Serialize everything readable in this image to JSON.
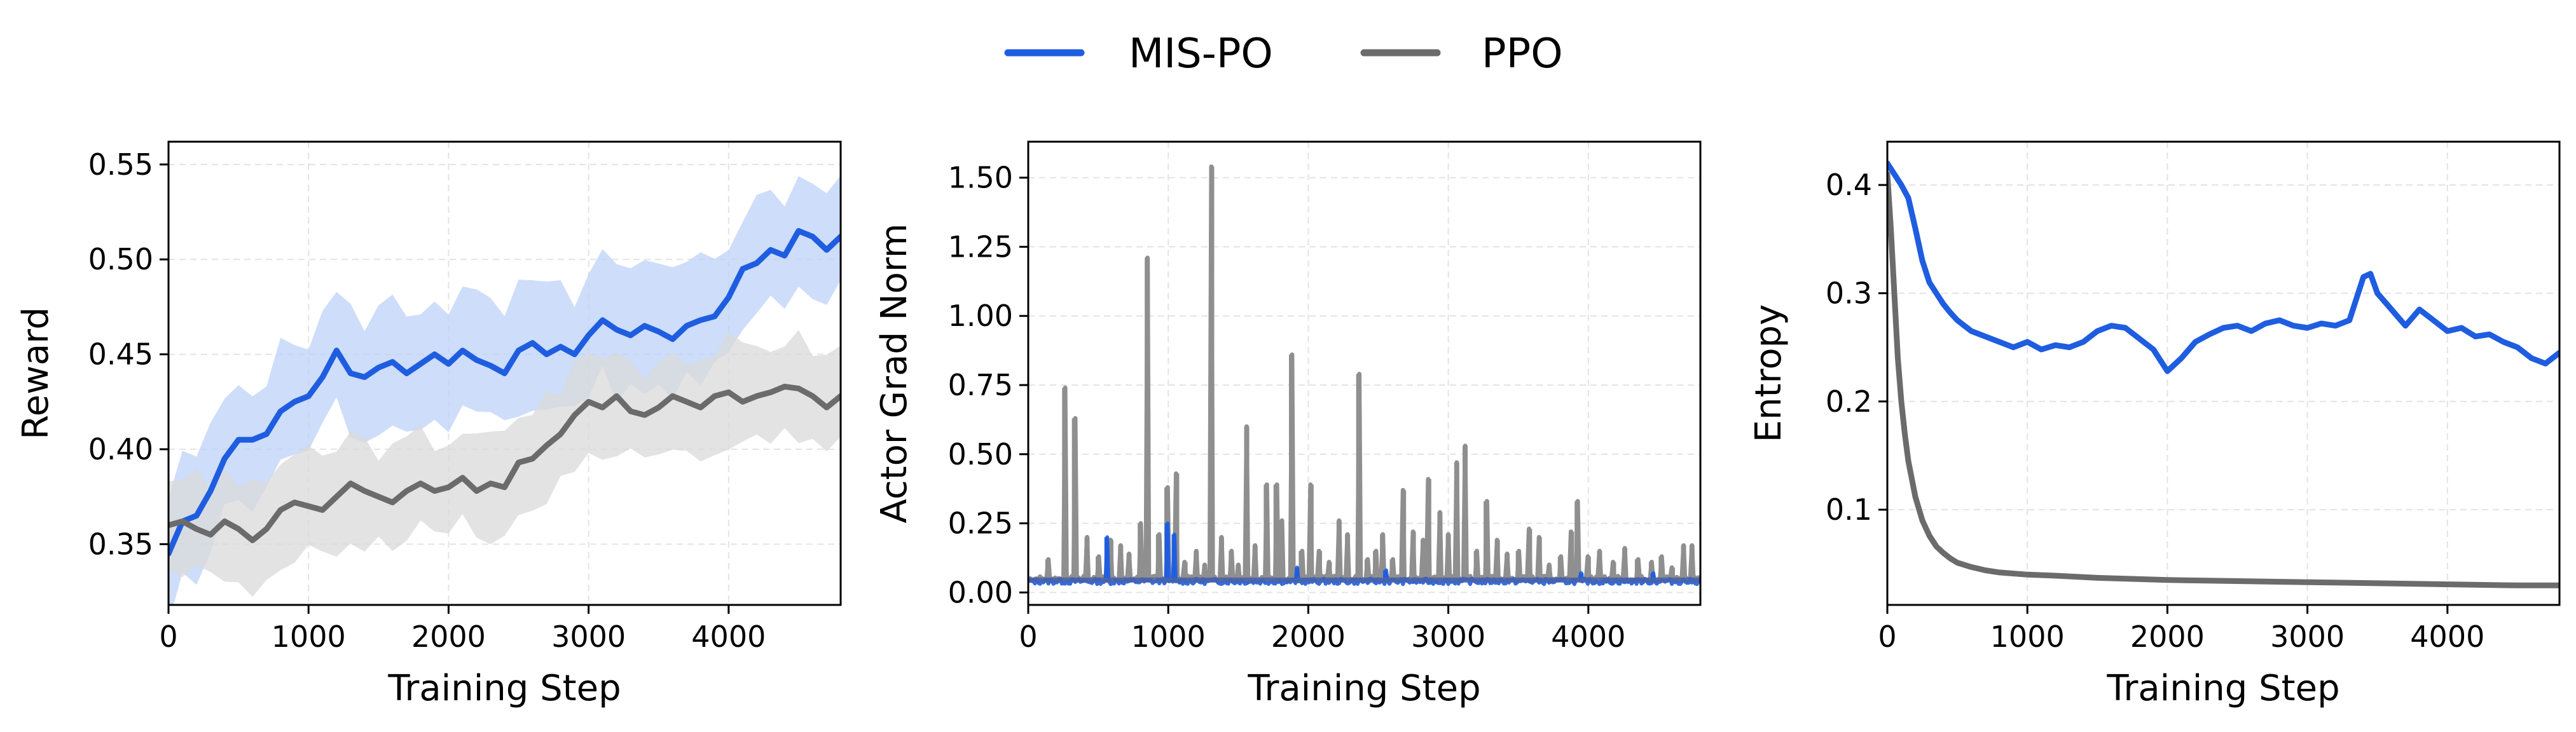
{
  "legend": {
    "items": [
      {
        "label": "MIS-PO",
        "color": "#1f5de0"
      },
      {
        "label": "PPO",
        "color": "#6b6b6b"
      }
    ]
  },
  "chart_data": [
    {
      "type": "line",
      "title": "",
      "xlabel": "Training Step",
      "ylabel": "Reward",
      "xlim": [
        0,
        4800
      ],
      "ylim": [
        0.318,
        0.562
      ],
      "xticks": [
        0,
        1000,
        2000,
        3000,
        4000
      ],
      "yticks": [
        0.35,
        0.4,
        0.45,
        0.5,
        0.55
      ],
      "ytick_labels": [
        "0.35",
        "0.40",
        "0.45",
        "0.50",
        "0.55"
      ],
      "series": [
        {
          "name": "MIS-PO",
          "color": "#1f5de0",
          "band_color": "#bcd2f8",
          "x": [
            0,
            100,
            200,
            300,
            400,
            500,
            600,
            700,
            800,
            900,
            1000,
            1100,
            1200,
            1300,
            1400,
            1500,
            1600,
            1700,
            1800,
            1900,
            2000,
            2100,
            2200,
            2300,
            2400,
            2500,
            2600,
            2700,
            2800,
            2900,
            3000,
            3100,
            3200,
            3300,
            3400,
            3500,
            3600,
            3700,
            3800,
            3900,
            4000,
            4100,
            4200,
            4300,
            4400,
            4500,
            4600,
            4700,
            4800
          ],
          "y": [
            0.345,
            0.362,
            0.365,
            0.378,
            0.395,
            0.405,
            0.405,
            0.408,
            0.42,
            0.425,
            0.428,
            0.438,
            0.452,
            0.44,
            0.438,
            0.443,
            0.446,
            0.44,
            0.445,
            0.45,
            0.445,
            0.452,
            0.447,
            0.444,
            0.44,
            0.452,
            0.456,
            0.45,
            0.454,
            0.45,
            0.46,
            0.468,
            0.463,
            0.46,
            0.465,
            0.462,
            0.458,
            0.465,
            0.468,
            0.47,
            0.48,
            0.495,
            0.498,
            0.505,
            0.502,
            0.515,
            0.512,
            0.505,
            0.512
          ],
          "band": 0.03
        },
        {
          "name": "PPO",
          "color": "#6b6b6b",
          "band_color": "#d9d9d9",
          "x": [
            0,
            100,
            200,
            300,
            400,
            500,
            600,
            700,
            800,
            900,
            1000,
            1100,
            1200,
            1300,
            1400,
            1500,
            1600,
            1700,
            1800,
            1900,
            2000,
            2100,
            2200,
            2300,
            2400,
            2500,
            2600,
            2700,
            2800,
            2900,
            3000,
            3100,
            3200,
            3300,
            3400,
            3500,
            3600,
            3700,
            3800,
            3900,
            4000,
            4100,
            4200,
            4300,
            4400,
            4500,
            4600,
            4700,
            4800
          ],
          "y": [
            0.36,
            0.362,
            0.358,
            0.355,
            0.362,
            0.358,
            0.352,
            0.358,
            0.368,
            0.372,
            0.37,
            0.368,
            0.375,
            0.382,
            0.378,
            0.375,
            0.372,
            0.378,
            0.382,
            0.378,
            0.38,
            0.385,
            0.378,
            0.382,
            0.38,
            0.393,
            0.395,
            0.402,
            0.408,
            0.418,
            0.425,
            0.422,
            0.428,
            0.42,
            0.418,
            0.422,
            0.428,
            0.425,
            0.422,
            0.428,
            0.43,
            0.425,
            0.428,
            0.43,
            0.433,
            0.432,
            0.428,
            0.422,
            0.428
          ],
          "band": 0.025
        }
      ]
    },
    {
      "type": "line",
      "title": "",
      "xlabel": "Training Step",
      "ylabel": "Actor Grad Norm",
      "xlim": [
        0,
        4800
      ],
      "ylim": [
        -0.045,
        1.63
      ],
      "xticks": [
        0,
        1000,
        2000,
        3000,
        4000
      ],
      "yticks": [
        0.0,
        0.25,
        0.5,
        0.75,
        1.0,
        1.25,
        1.5
      ],
      "ytick_labels": [
        "0.00",
        "0.25",
        "0.50",
        "0.75",
        "1.00",
        "1.25",
        "1.50"
      ],
      "baseline": {
        "PPO": 0.05,
        "MIS-PO": 0.04
      },
      "series": [
        {
          "name": "PPO",
          "color": "#8f8f8f",
          "spikes": [
            [
              140,
              0.12
            ],
            [
              260,
              0.74
            ],
            [
              330,
              0.63
            ],
            [
              420,
              0.2
            ],
            [
              500,
              0.13
            ],
            [
              590,
              0.19
            ],
            [
              660,
              0.17
            ],
            [
              720,
              0.14
            ],
            [
              800,
              0.25
            ],
            [
              850,
              1.21
            ],
            [
              930,
              0.21
            ],
            [
              990,
              0.38
            ],
            [
              1060,
              0.43
            ],
            [
              1120,
              0.11
            ],
            [
              1200,
              0.15
            ],
            [
              1260,
              0.1
            ],
            [
              1310,
              1.54
            ],
            [
              1380,
              0.2
            ],
            [
              1450,
              0.15
            ],
            [
              1500,
              0.1
            ],
            [
              1560,
              0.6
            ],
            [
              1620,
              0.17
            ],
            [
              1700,
              0.39
            ],
            [
              1770,
              0.39
            ],
            [
              1810,
              0.26
            ],
            [
              1880,
              0.86
            ],
            [
              1950,
              0.15
            ],
            [
              2020,
              0.39
            ],
            [
              2080,
              0.15
            ],
            [
              2150,
              0.11
            ],
            [
              2220,
              0.26
            ],
            [
              2280,
              0.21
            ],
            [
              2360,
              0.79
            ],
            [
              2420,
              0.12
            ],
            [
              2480,
              0.15
            ],
            [
              2530,
              0.21
            ],
            [
              2600,
              0.12
            ],
            [
              2680,
              0.37
            ],
            [
              2750,
              0.22
            ],
            [
              2820,
              0.19
            ],
            [
              2860,
              0.41
            ],
            [
              2940,
              0.29
            ],
            [
              3000,
              0.21
            ],
            [
              3060,
              0.47
            ],
            [
              3120,
              0.53
            ],
            [
              3200,
              0.15
            ],
            [
              3270,
              0.33
            ],
            [
              3350,
              0.19
            ],
            [
              3420,
              0.14
            ],
            [
              3500,
              0.15
            ],
            [
              3580,
              0.23
            ],
            [
              3650,
              0.2
            ],
            [
              3720,
              0.1
            ],
            [
              3800,
              0.13
            ],
            [
              3880,
              0.22
            ],
            [
              3920,
              0.33
            ],
            [
              4000,
              0.13
            ],
            [
              4080,
              0.15
            ],
            [
              4180,
              0.11
            ],
            [
              4260,
              0.16
            ],
            [
              4350,
              0.12
            ],
            [
              4450,
              0.11
            ],
            [
              4520,
              0.13
            ],
            [
              4600,
              0.09
            ],
            [
              4680,
              0.17
            ],
            [
              4740,
              0.17
            ]
          ]
        },
        {
          "name": "MIS-PO",
          "color": "#1f5de0",
          "spikes": [
            [
              560,
              0.2
            ],
            [
              990,
              0.25
            ],
            [
              1040,
              0.21
            ],
            [
              1920,
              0.09
            ],
            [
              2550,
              0.08
            ],
            [
              3950,
              0.07
            ],
            [
              4460,
              0.07
            ]
          ]
        }
      ]
    },
    {
      "type": "line",
      "title": "",
      "xlabel": "Training Step",
      "ylabel": "Entropy",
      "xlim": [
        0,
        4800
      ],
      "ylim": [
        0.012,
        0.44
      ],
      "xticks": [
        0,
        1000,
        2000,
        3000,
        4000
      ],
      "yticks": [
        0.1,
        0.2,
        0.3,
        0.4
      ],
      "ytick_labels": [
        "0.1",
        "0.2",
        "0.3",
        "0.4"
      ],
      "series": [
        {
          "name": "MIS-PO",
          "color": "#1f5de0",
          "x": [
            0,
            50,
            100,
            150,
            200,
            250,
            300,
            350,
            400,
            450,
            500,
            550,
            600,
            700,
            800,
            900,
            1000,
            1100,
            1200,
            1300,
            1400,
            1500,
            1600,
            1700,
            1800,
            1900,
            2000,
            2100,
            2200,
            2300,
            2400,
            2500,
            2600,
            2700,
            2800,
            2900,
            3000,
            3100,
            3200,
            3300,
            3400,
            3450,
            3500,
            3600,
            3700,
            3800,
            3900,
            4000,
            4100,
            4200,
            4300,
            4400,
            4500,
            4600,
            4700,
            4800
          ],
          "y": [
            0.42,
            0.41,
            0.4,
            0.388,
            0.36,
            0.33,
            0.31,
            0.3,
            0.29,
            0.282,
            0.275,
            0.27,
            0.265,
            0.26,
            0.255,
            0.25,
            0.255,
            0.248,
            0.252,
            0.25,
            0.255,
            0.265,
            0.27,
            0.268,
            0.258,
            0.248,
            0.228,
            0.24,
            0.255,
            0.262,
            0.268,
            0.27,
            0.265,
            0.272,
            0.275,
            0.27,
            0.268,
            0.272,
            0.27,
            0.275,
            0.315,
            0.318,
            0.3,
            0.285,
            0.27,
            0.285,
            0.275,
            0.265,
            0.268,
            0.26,
            0.262,
            0.255,
            0.25,
            0.24,
            0.235,
            0.245
          ]
        },
        {
          "name": "PPO",
          "color": "#6b6b6b",
          "x": [
            0,
            25,
            50,
            75,
            100,
            125,
            150,
            200,
            250,
            300,
            350,
            400,
            450,
            500,
            600,
            700,
            800,
            1000,
            1200,
            1500,
            2000,
            2500,
            3000,
            3500,
            4000,
            4500,
            4800
          ],
          "y": [
            0.41,
            0.36,
            0.3,
            0.24,
            0.2,
            0.17,
            0.145,
            0.112,
            0.09,
            0.076,
            0.066,
            0.06,
            0.055,
            0.051,
            0.047,
            0.044,
            0.042,
            0.04,
            0.039,
            0.037,
            0.035,
            0.034,
            0.033,
            0.032,
            0.031,
            0.03,
            0.03
          ]
        }
      ]
    }
  ]
}
